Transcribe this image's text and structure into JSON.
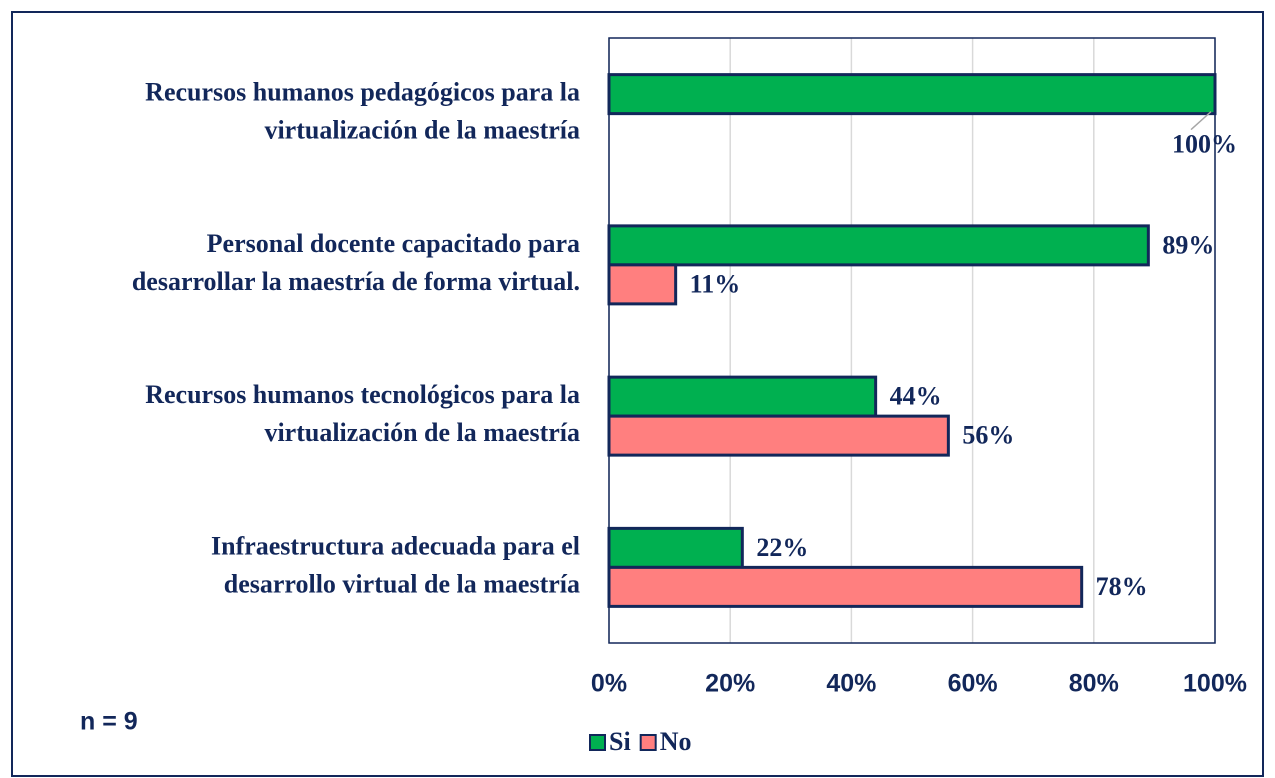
{
  "chart_data": {
    "type": "hbar",
    "categories": [
      [
        "Recursos humanos pedagógicos para la",
        "virtualización de la maestría"
      ],
      [
        "Personal docente capacitado para",
        "desarrollar la maestría de forma virtual."
      ],
      [
        "Recursos humanos tecnológicos para la",
        "virtualización de la maestría"
      ],
      [
        "Infraestructura adecuada para el",
        "desarrollo virtual de la maestría"
      ]
    ],
    "series": [
      {
        "name": "Si",
        "color": "#00b050",
        "values": [
          100,
          89,
          44,
          22
        ],
        "value_labels": [
          "100%",
          "89%",
          "44%",
          "22%"
        ]
      },
      {
        "name": "No",
        "color": "#ff7f7f",
        "values": [
          null,
          11,
          56,
          78
        ],
        "value_labels": [
          null,
          "11%",
          "56%",
          "78%"
        ]
      }
    ],
    "xlim": [
      0,
      100
    ],
    "xticks": [
      {
        "value": 0,
        "label": "0%"
      },
      {
        "value": 20,
        "label": "20%"
      },
      {
        "value": 40,
        "label": "40%"
      },
      {
        "value": 60,
        "label": "60%"
      },
      {
        "value": 80,
        "label": "80%"
      },
      {
        "value": 100,
        "label": "100%"
      }
    ],
    "grid": true,
    "legend": "bottom",
    "annotation": "n = 9"
  }
}
